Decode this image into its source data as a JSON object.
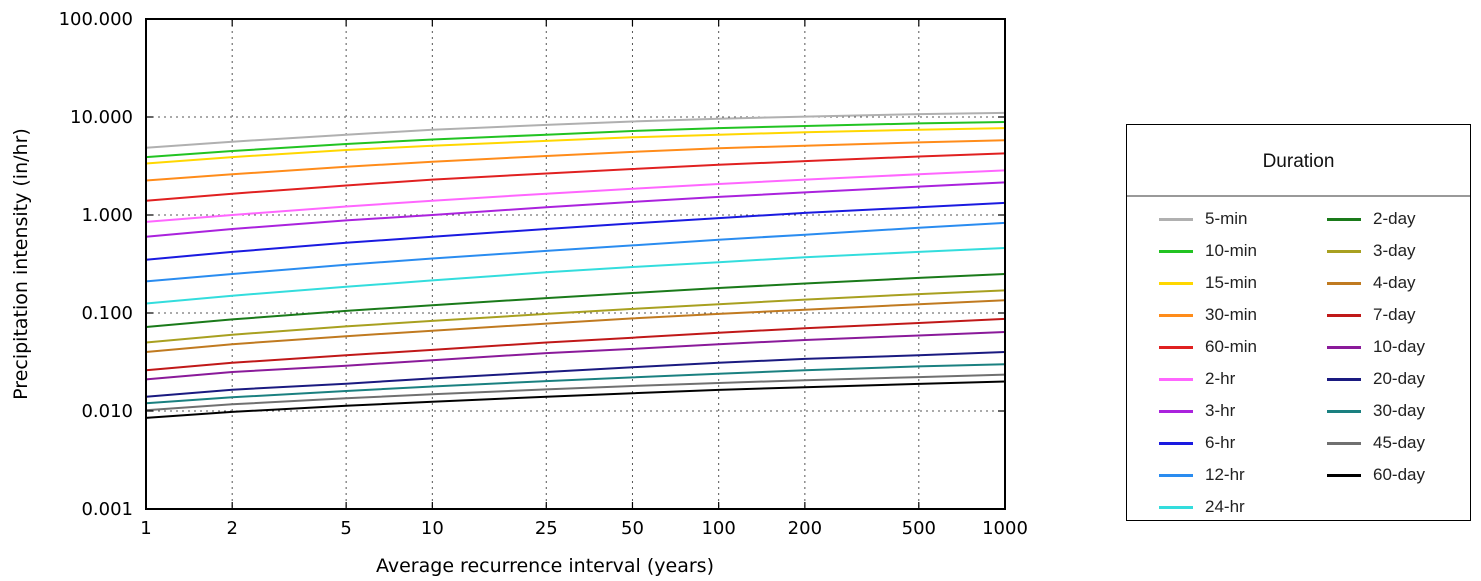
{
  "chart_data": {
    "type": "line",
    "xlabel": "Average recurrence interval (years)",
    "ylabel": "Precipitation intensity (in/hr)",
    "x_scale": "log",
    "y_scale": "log",
    "grid": true,
    "xlim": [
      1,
      1000
    ],
    "ylim": [
      0.001,
      100
    ],
    "x": [
      1,
      2,
      5,
      10,
      25,
      50,
      100,
      200,
      500,
      1000
    ],
    "x_tick_labels": [
      "1",
      "2",
      "5",
      "10",
      "25",
      "50",
      "100",
      "200",
      "500",
      "1000"
    ],
    "y_ticks": [
      0.001,
      0.01,
      0.1,
      1,
      10,
      100
    ],
    "y_tick_labels": [
      "0.001",
      "0.010",
      "0.100",
      "1.000",
      "10.000",
      "100.000"
    ],
    "legend_title": "Duration",
    "legend_position": "right, outside plot",
    "series": [
      {
        "name": "5-min",
        "color": "#b0b0b0",
        "values": [
          4.85,
          5.6,
          6.6,
          7.4,
          8.3,
          9.0,
          9.6,
          10.1,
          10.7,
          11.0
        ]
      },
      {
        "name": "10-min",
        "color": "#22c322",
        "values": [
          3.9,
          4.5,
          5.3,
          5.9,
          6.6,
          7.2,
          7.7,
          8.1,
          8.6,
          8.9
        ]
      },
      {
        "name": "15-min",
        "color": "#ffd700",
        "values": [
          3.35,
          3.9,
          4.6,
          5.1,
          5.7,
          6.2,
          6.6,
          7.0,
          7.4,
          7.7
        ]
      },
      {
        "name": "30-min",
        "color": "#ff8c1a",
        "values": [
          2.25,
          2.6,
          3.1,
          3.5,
          4.0,
          4.4,
          4.8,
          5.1,
          5.5,
          5.8
        ]
      },
      {
        "name": "60-min",
        "color": "#e02020",
        "values": [
          1.4,
          1.65,
          2.0,
          2.3,
          2.65,
          2.95,
          3.25,
          3.55,
          3.95,
          4.25
        ]
      },
      {
        "name": "2-hr",
        "color": "#ff66ff",
        "values": [
          0.85,
          1.0,
          1.22,
          1.4,
          1.65,
          1.85,
          2.07,
          2.3,
          2.6,
          2.85
        ]
      },
      {
        "name": "3-hr",
        "color": "#aa22dd",
        "values": [
          0.6,
          0.72,
          0.88,
          1.0,
          1.2,
          1.36,
          1.53,
          1.7,
          1.95,
          2.15
        ]
      },
      {
        "name": "6-hr",
        "color": "#1a1ae0",
        "values": [
          0.35,
          0.42,
          0.52,
          0.6,
          0.72,
          0.82,
          0.93,
          1.05,
          1.2,
          1.33
        ]
      },
      {
        "name": "12-hr",
        "color": "#2a8cf0",
        "values": [
          0.21,
          0.25,
          0.31,
          0.36,
          0.43,
          0.49,
          0.56,
          0.63,
          0.74,
          0.83
        ]
      },
      {
        "name": "24-hr",
        "color": "#33dddd",
        "values": [
          0.125,
          0.15,
          0.185,
          0.215,
          0.26,
          0.295,
          0.33,
          0.37,
          0.42,
          0.46
        ]
      },
      {
        "name": "2-day",
        "color": "#1a7a1a",
        "values": [
          0.072,
          0.086,
          0.105,
          0.12,
          0.142,
          0.16,
          0.18,
          0.2,
          0.228,
          0.25
        ]
      },
      {
        "name": "3-day",
        "color": "#a8a020",
        "values": [
          0.05,
          0.06,
          0.073,
          0.083,
          0.098,
          0.11,
          0.123,
          0.137,
          0.156,
          0.17
        ]
      },
      {
        "name": "4-day",
        "color": "#c07a20",
        "values": [
          0.04,
          0.048,
          0.058,
          0.066,
          0.078,
          0.088,
          0.098,
          0.108,
          0.123,
          0.135
        ]
      },
      {
        "name": "7-day",
        "color": "#c01818",
        "values": [
          0.026,
          0.031,
          0.037,
          0.042,
          0.05,
          0.056,
          0.063,
          0.07,
          0.079,
          0.087
        ]
      },
      {
        "name": "10-day",
        "color": "#8a1a9a",
        "values": [
          0.021,
          0.025,
          0.029,
          0.033,
          0.039,
          0.043,
          0.048,
          0.053,
          0.059,
          0.064
        ]
      },
      {
        "name": "20-day",
        "color": "#1a1a80",
        "values": [
          0.014,
          0.0165,
          0.019,
          0.0215,
          0.025,
          0.028,
          0.031,
          0.034,
          0.037,
          0.04
        ]
      },
      {
        "name": "30-day",
        "color": "#1a8080",
        "values": [
          0.012,
          0.0138,
          0.016,
          0.0178,
          0.0202,
          0.022,
          0.024,
          0.026,
          0.0285,
          0.03
        ]
      },
      {
        "name": "45-day",
        "color": "#707070",
        "values": [
          0.0102,
          0.0117,
          0.0135,
          0.0148,
          0.0166,
          0.018,
          0.0193,
          0.0206,
          0.0222,
          0.0235
        ]
      },
      {
        "name": "60-day",
        "color": "#000000",
        "values": [
          0.0085,
          0.0098,
          0.0113,
          0.0124,
          0.014,
          0.0152,
          0.0164,
          0.0175,
          0.0189,
          0.02
        ]
      }
    ]
  }
}
